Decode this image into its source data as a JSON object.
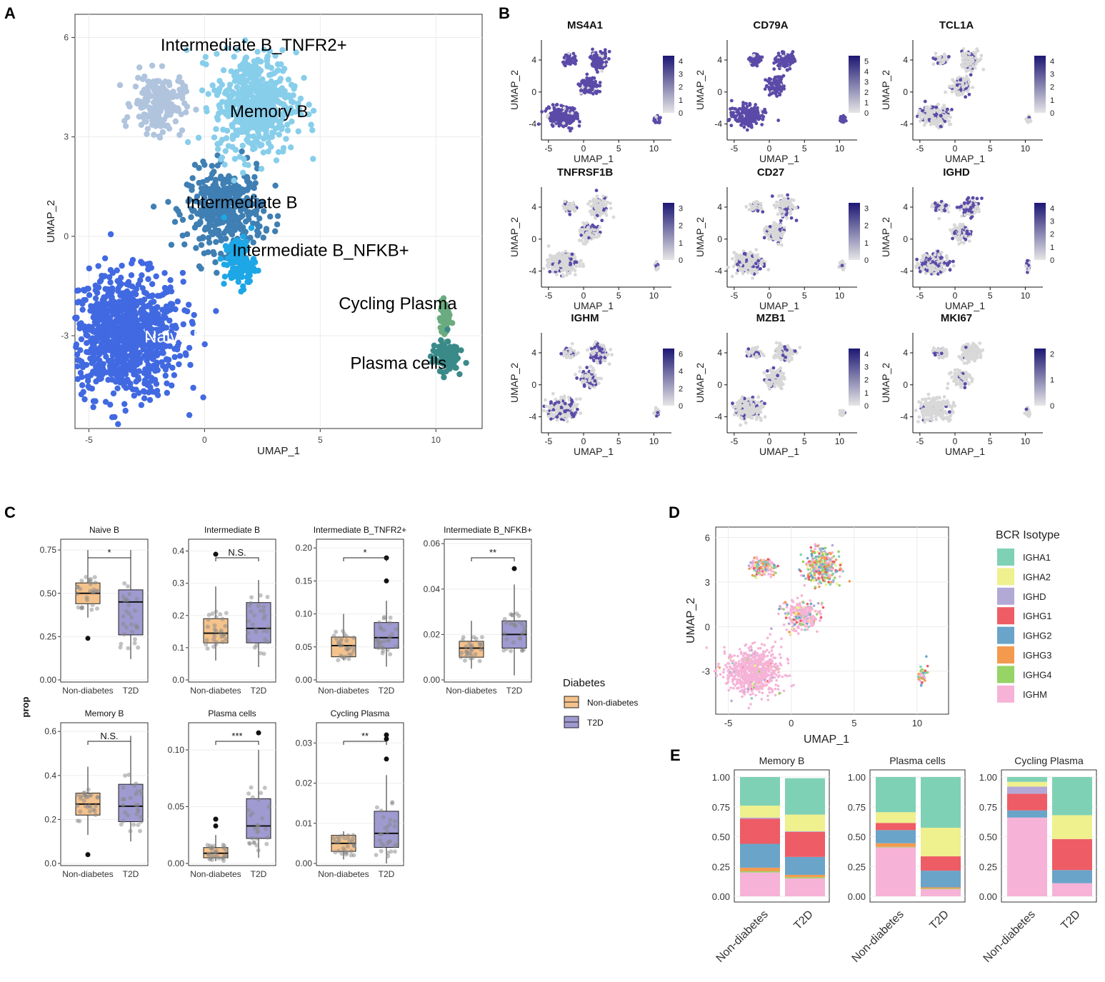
{
  "panel_labels": {
    "a": "A",
    "b": "B",
    "c": "C",
    "d": "D",
    "e": "E"
  },
  "chart_data": [
    {
      "id": "A",
      "type": "scatter",
      "xlabel": "UMAP_1",
      "ylabel": "UMAP_2",
      "xticks": [
        -5,
        0,
        5,
        10
      ],
      "yticks": [
        -3,
        0,
        3,
        6
      ],
      "xlim": [
        -5.6,
        12
      ],
      "ylim": [
        -5.8,
        6.7
      ],
      "clusters": [
        {
          "name": "Naive B",
          "color": "#4169e1",
          "center": [
            -3.5,
            -3
          ],
          "spread": [
            2.3,
            1.7
          ],
          "n": 900
        },
        {
          "name": "Intermediate B",
          "color": "#3f7fb3",
          "center": [
            0.9,
            0.8
          ],
          "spread": [
            1.5,
            1.1
          ],
          "n": 400
        },
        {
          "name": "Intermediate B_TNFR2+",
          "color": "#b0c4de",
          "center": [
            -2,
            4
          ],
          "spread": [
            1,
            0.8
          ],
          "n": 200
        },
        {
          "name": "Memory B",
          "color": "#87ceeb",
          "center": [
            2.2,
            4
          ],
          "spread": [
            1.6,
            1.4
          ],
          "n": 500
        },
        {
          "name": "Intermediate B_NFKB+",
          "color": "#1ea7e6",
          "center": [
            1.5,
            -0.8
          ],
          "spread": [
            0.6,
            0.7
          ],
          "n": 120
        },
        {
          "name": "Cycling Plasma",
          "color": "#6aab7f",
          "center": [
            10.4,
            -2.5
          ],
          "spread": [
            0.2,
            0.5
          ],
          "n": 60
        },
        {
          "name": "Plasma cells",
          "color": "#3b8a8a",
          "center": [
            10.4,
            -3.6
          ],
          "spread": [
            0.5,
            0.4
          ],
          "n": 120
        }
      ],
      "labels": [
        {
          "text": "Intermediate B_TNFR2+",
          "x": -1.9,
          "y": 5.6,
          "color": "#000"
        },
        {
          "text": "Memory B",
          "x": 1.1,
          "y": 3.6,
          "color": "#000"
        },
        {
          "text": "Intermediate B",
          "x": -0.8,
          "y": 0.85,
          "color": "#000"
        },
        {
          "text": "Intermediate B_NFKB+",
          "x": 1.2,
          "y": -0.6,
          "color": "#000"
        },
        {
          "text": "Cycling Plasma",
          "x": 5.8,
          "y": -2.2,
          "color": "#000"
        },
        {
          "text": "Naive B",
          "x": -2.6,
          "y": -3.2,
          "color": "#ffffff"
        },
        {
          "text": "Plasma cells",
          "x": 6.3,
          "y": -4
        },
        {
          "text": "",
          "x": 0,
          "y": 0
        }
      ]
    },
    {
      "id": "B",
      "type": "scatter",
      "xlabel": "UMAP_1",
      "ylabel": "UMAP_2",
      "xticks": [
        -5,
        0,
        5,
        10
      ],
      "yticks": [
        4,
        0,
        -4
      ],
      "genes": [
        {
          "name": "MS4A1",
          "scale": [
            0,
            1,
            2,
            3,
            4
          ]
        },
        {
          "name": "CD79A",
          "scale": [
            0,
            1,
            2,
            3,
            4,
            5
          ]
        },
        {
          "name": "TCL1A",
          "scale": [
            0,
            1,
            2,
            3,
            4
          ]
        },
        {
          "name": "TNFRSF1B",
          "scale": [
            0,
            1,
            2,
            3
          ]
        },
        {
          "name": "CD27",
          "scale": [
            0,
            1,
            2,
            3
          ]
        },
        {
          "name": "IGHD",
          "scale": [
            0,
            1,
            2,
            3,
            4
          ]
        },
        {
          "name": "IGHM",
          "scale": [
            0,
            2,
            4,
            6
          ]
        },
        {
          "name": "MZB1",
          "scale": [
            0,
            1,
            2,
            3,
            4
          ]
        },
        {
          "name": "MKI67",
          "scale": [
            0,
            1,
            2
          ]
        }
      ]
    },
    {
      "id": "C",
      "type": "box",
      "ylabel": "prop",
      "xcats": [
        "Non-diabetes",
        "T2D"
      ],
      "legend_title": "Diabetes",
      "legend": [
        "Non-diabetes",
        "T2D"
      ],
      "colors": {
        "Non-diabetes": "#f4c28c",
        "T2D": "#9f9ad0"
      },
      "facets": [
        {
          "title": "Naive B",
          "sig": "*",
          "ylim": [
            0,
            0.8
          ],
          "yticks": [
            0,
            0.25,
            0.5,
            0.75
          ],
          "ytick_labels": [
            "0.00",
            "0.25",
            "0.50",
            "0.75"
          ],
          "stats": [
            {
              "q1": 0.44,
              "med": 0.5,
              "q3": 0.56,
              "lo": 0.36,
              "hi": 0.75,
              "outliers": [
                0.24
              ]
            },
            {
              "q1": 0.26,
              "med": 0.45,
              "q3": 0.52,
              "lo": 0.12,
              "hi": 0.75,
              "outliers": []
            }
          ]
        },
        {
          "title": "Intermediate B",
          "sig": "N.S.",
          "ylim": [
            0,
            0.43
          ],
          "yticks": [
            0,
            0.1,
            0.2,
            0.3,
            0.4
          ],
          "ytick_labels": [
            "0.0",
            "0.1",
            "0.2",
            "0.3",
            "0.4"
          ],
          "stats": [
            {
              "q1": 0.115,
              "med": 0.145,
              "q3": 0.19,
              "lo": 0.06,
              "hi": 0.29,
              "outliers": [
                0.39
              ]
            },
            {
              "q1": 0.115,
              "med": 0.16,
              "q3": 0.24,
              "lo": 0.04,
              "hi": 0.31,
              "outliers": []
            }
          ]
        },
        {
          "title": "Intermediate B_TNFR2+",
          "sig": "*",
          "ylim": [
            0,
            0.21
          ],
          "yticks": [
            0,
            0.05,
            0.1,
            0.15,
            0.2
          ],
          "ytick_labels": [
            "0.00",
            "0.05",
            "0.10",
            "0.15",
            "0.20"
          ],
          "stats": [
            {
              "q1": 0.035,
              "med": 0.052,
              "q3": 0.065,
              "lo": 0.03,
              "hi": 0.1,
              "outliers": []
            },
            {
              "q1": 0.048,
              "med": 0.064,
              "q3": 0.087,
              "lo": 0.02,
              "hi": 0.12,
              "outliers": [
                0.15,
                0.185
              ]
            }
          ]
        },
        {
          "title": "Intermediate B_NFKB+",
          "sig": "**",
          "ylim": [
            0,
            0.061
          ],
          "yticks": [
            0,
            0.02,
            0.04,
            0.06
          ],
          "ytick_labels": [
            "0.00",
            "0.02",
            "0.04",
            "0.06"
          ],
          "stats": [
            {
              "q1": 0.01,
              "med": 0.014,
              "q3": 0.017,
              "lo": 0.005,
              "hi": 0.026,
              "outliers": []
            },
            {
              "q1": 0.014,
              "med": 0.02,
              "q3": 0.026,
              "lo": 0.002,
              "hi": 0.042,
              "outliers": [
                0.049
              ]
            }
          ]
        },
        {
          "title": "Memory B",
          "sig": "N.S.",
          "ylim": [
            0,
            0.63
          ],
          "yticks": [
            0,
            0.2,
            0.4,
            0.6
          ],
          "ytick_labels": [
            "0.0",
            "0.2",
            "0.4",
            "0.6"
          ],
          "stats": [
            {
              "q1": 0.22,
              "med": 0.27,
              "q3": 0.32,
              "lo": 0.13,
              "hi": 0.44,
              "outliers": [
                0.04
              ]
            },
            {
              "q1": 0.19,
              "med": 0.26,
              "q3": 0.36,
              "lo": 0.1,
              "hi": 0.58,
              "outliers": []
            }
          ]
        },
        {
          "title": "Plasma cells",
          "sig": "***",
          "ylim": [
            0,
            0.122
          ],
          "yticks": [
            0,
            0.05,
            0.1
          ],
          "ytick_labels": [
            "0.00",
            "0.05",
            "0.10"
          ],
          "stats": [
            {
              "q1": 0.005,
              "med": 0.009,
              "q3": 0.014,
              "lo": 0.002,
              "hi": 0.025,
              "outliers": [
                0.033,
                0.039,
                0.039
              ]
            },
            {
              "q1": 0.022,
              "med": 0.033,
              "q3": 0.057,
              "lo": 0.005,
              "hi": 0.1,
              "outliers": [
                0.115
              ]
            }
          ]
        },
        {
          "title": "Cycling Plasma",
          "sig": "**",
          "ylim": [
            0,
            0.0345
          ],
          "yticks": [
            0,
            0.01,
            0.02,
            0.03
          ],
          "ytick_labels": [
            "0.00",
            "0.01",
            "0.02",
            "0.03"
          ],
          "stats": [
            {
              "q1": 0.003,
              "med": 0.005,
              "q3": 0.007,
              "lo": 0.001,
              "hi": 0.008,
              "outliers": []
            },
            {
              "q1": 0.004,
              "med": 0.0075,
              "q3": 0.013,
              "lo": 0.0,
              "hi": 0.022,
              "outliers": [
                0.026,
                0.031,
                0.032
              ]
            }
          ]
        }
      ]
    },
    {
      "id": "D",
      "type": "scatter",
      "xlabel": "UMAP_1",
      "ylabel": "UMAP_2",
      "xticks": [
        -5,
        0,
        5,
        10
      ],
      "yticks": [
        -3,
        0,
        3,
        6
      ],
      "legend_title": "BCR Isotype",
      "isotypes": [
        {
          "name": "IGHA1",
          "color": "#7fd1b5"
        },
        {
          "name": "IGHA2",
          "color": "#eff08e"
        },
        {
          "name": "IGHD",
          "color": "#b3a9d6"
        },
        {
          "name": "IGHG1",
          "color": "#ee5c66"
        },
        {
          "name": "IGHG2",
          "color": "#6aa4c9"
        },
        {
          "name": "IGHG3",
          "color": "#f49a4f"
        },
        {
          "name": "IGHG4",
          "color": "#96d466"
        },
        {
          "name": "IGHM",
          "color": "#f6b3d7"
        }
      ]
    },
    {
      "id": "E",
      "type": "stacked_bar",
      "categories": [
        "Non-diabetes",
        "T2D"
      ],
      "yticks": [
        0,
        0.25,
        0.5,
        0.75,
        1
      ],
      "ytick_labels": [
        "0.00",
        "0.25",
        "0.50",
        "0.75",
        "1.00"
      ],
      "stack_order": [
        "IGHM",
        "IGHG4",
        "IGHG3",
        "IGHG2",
        "IGHG1",
        "IGHD",
        "IGHA2",
        "IGHA1"
      ],
      "facets": [
        {
          "title": "Memory B",
          "values": [
            [
              0.2,
              0.01,
              0.03,
              0.2,
              0.21,
              0.01,
              0.1,
              0.24
            ],
            [
              0.15,
              0.01,
              0.02,
              0.15,
              0.21,
              0.005,
              0.14,
              0.305
            ]
          ]
        },
        {
          "title": "Plasma cells",
          "values": [
            [
              0.41,
              0.005,
              0.03,
              0.11,
              0.06,
              0.0,
              0.09,
              0.295
            ],
            [
              0.06,
              0.005,
              0.01,
              0.14,
              0.12,
              0.0,
              0.24,
              0.425
            ]
          ]
        },
        {
          "title": "Cycling Plasma",
          "values": [
            [
              0.66,
              0.0,
              0.0,
              0.06,
              0.14,
              0.06,
              0.04,
              0.04
            ],
            [
              0.11,
              0.0,
              0.0,
              0.11,
              0.26,
              0.0,
              0.2,
              0.32
            ]
          ]
        }
      ]
    }
  ]
}
